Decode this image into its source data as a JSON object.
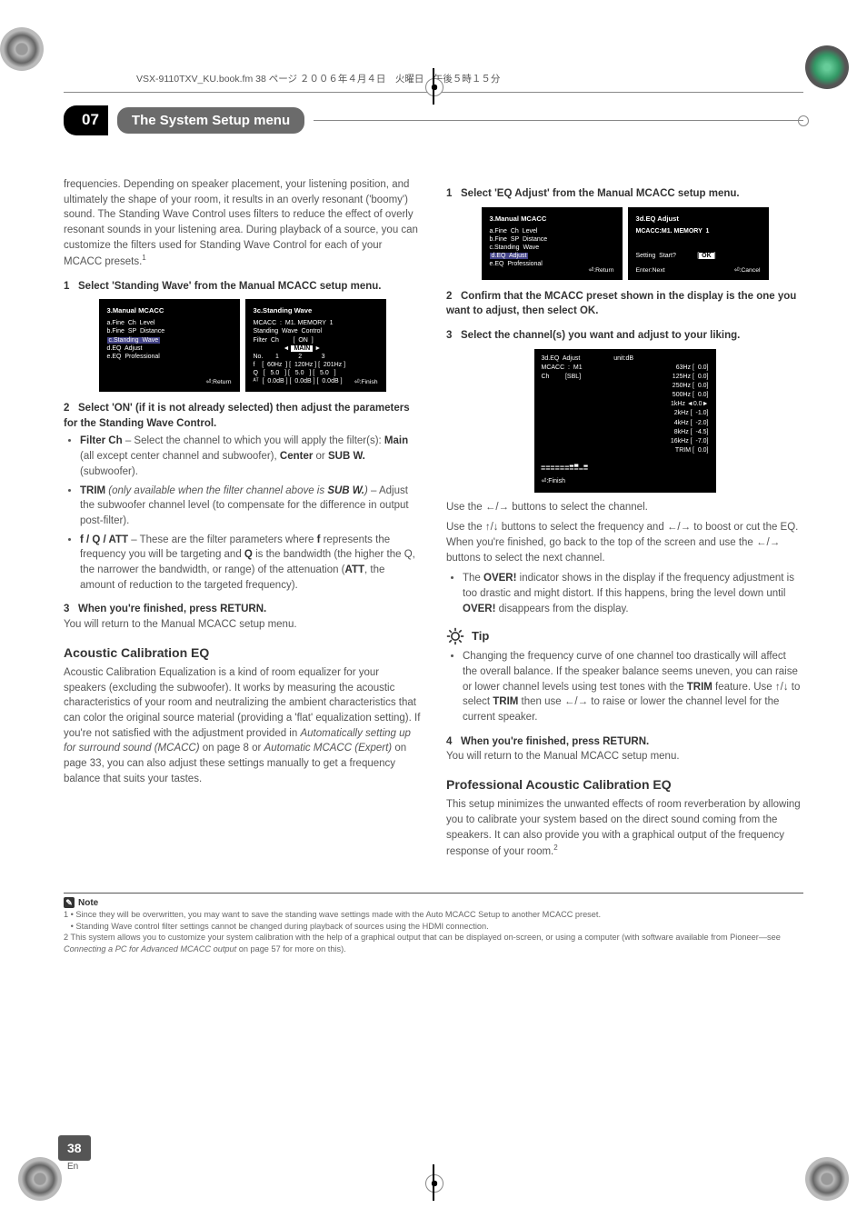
{
  "header_line": "VSX-9110TXV_KU.book.fm 38 ページ ２００６年４月４日　火曜日　午後５時１５分",
  "chapter": {
    "num": "07",
    "title": "The System Setup menu"
  },
  "col_left": {
    "intro": "frequencies. Depending on speaker placement, your listening position, and ultimately the shape of your room, it results in an overly resonant ('boomy') sound. The Standing Wave Control uses filters to reduce the effect of overly resonant sounds in your listening area. During playback of a source, you can customize the filters used for Standing Wave Control for each of your MCACC presets.",
    "sup1": "1",
    "step1": {
      "num": "1",
      "text": "Select 'Standing Wave' from the Manual MCACC setup menu."
    },
    "panelA": {
      "title": "3.Manual  MCACC",
      "items": [
        "a.Fine  Ch  Level",
        "b.Fine  SP  Distance",
        "c.Standing  Wave",
        "d.EQ  Adjust",
        "e.EQ  Professional"
      ],
      "hl_index": 2,
      "foot": "⏎:Return"
    },
    "panelB": {
      "title": "3c.Standing  Wave",
      "l1": "MCACC  :  M1. MEMORY  1",
      "l2": "Standing  Wave  Control",
      "l3_label": "Filter  Ch",
      "l3_on": "ON",
      "l3_main": "MAIN",
      "table": {
        "head": "No.       1           2           3",
        "r1": "f    [  60Hz  ] [  120Hz ] [  201Hz ]",
        "r2": "Q   [   5.0   ] [   5.0   ] [   5.0   ]",
        "r3": "ᴬᵀ  [  0.0dB ] [  0.0dB ] [  0.0dB ]"
      },
      "foot": "⏎:Finish"
    },
    "step2": {
      "num": "2",
      "text": "Select 'ON' (if it is not already selected) then adjust the parameters for the Standing Wave Control."
    },
    "bullets": [
      {
        "lbl": "Filter Ch",
        "txt": " – Select the channel to which you will apply the filter(s): ",
        "b2": "Main",
        "txt2": " (all except center channel and subwoofer), ",
        "b3": "Center",
        "txt3": " or ",
        "b4": "SUB W.",
        "txt4": " (subwoofer)."
      },
      {
        "lbl": "TRIM",
        "it": " (only available when the filter channel above is ",
        "itb": "SUB W.",
        "it2": ")",
        "txt": " – Adjust the subwoofer channel level (to compensate for the difference in output post-filter)."
      },
      {
        "lbl": "f / Q / ATT",
        "txt": " – These are the filter parameters where ",
        "b2": "f",
        "txt2": " represents the frequency you will be targeting and ",
        "b3": "Q",
        "txt3": " is the bandwidth (the higher the Q, the narrower the bandwidth, or range) of the attenuation (",
        "b4": "ATT",
        "txt4": ", the amount of reduction to the targeted frequency)."
      }
    ],
    "step3": {
      "num": "3",
      "text": "When you're finished, press RETURN."
    },
    "step3_sub": "You will return to the Manual MCACC setup menu.",
    "h2": "Acoustic Calibration EQ",
    "acoustic_para_a": "Acoustic Calibration Equalization is a kind of room equalizer for your speakers (excluding the subwoofer). It works by measuring the acoustic characteristics of your room and neutralizing the ambient characteristics that can color the original source material (providing a 'flat' equalization setting). If you're not satisfied with the adjustment provided in ",
    "acoustic_it1": "Automatically setting up for surround sound (MCACC)",
    "acoustic_mid1": " on page 8 or ",
    "acoustic_it2": "Automatic MCACC (Expert)",
    "acoustic_mid2": " on page 33, you can also adjust these settings manually to get a frequency balance that suits your tastes."
  },
  "col_right": {
    "step1": {
      "num": "1",
      "text": "Select 'EQ Adjust' from the Manual MCACC setup menu."
    },
    "panelA": {
      "title": "3.Manual  MCACC",
      "items": [
        "a.Fine  Ch  Level",
        "b.Fine  SP  Distance",
        "c.Standing  Wave",
        "d.EQ  Adjust",
        "e.EQ  Professional"
      ],
      "hl_index": 3,
      "foot": "⏎:Return"
    },
    "panelB": {
      "title": "3d.EQ  Adjust",
      "l1": "MCACC:M1. MEMORY  1",
      "l2": "Setting  Start?",
      "ok": "OK",
      "foot_l": "Enter:Next",
      "foot": "⏎:Cancel"
    },
    "step2": {
      "num": "2",
      "text": "Confirm that the MCACC preset shown in the display is the one you want to adjust, then select OK."
    },
    "step3": {
      "num": "3",
      "text": "Select the channel(s) you want and adjust to your liking."
    },
    "eq_panel": {
      "title": "3d.EQ  Adjust                   unit:dB",
      "l_mcacc": "MCACC  :  M1",
      "l_ch": "Ch         [SBL]",
      "freqs": [
        "63Hz",
        "125Hz",
        "250Hz",
        "500Hz",
        "1kHz",
        "2kHz",
        "4kHz",
        "8kHz",
        "16kHz",
        "TRIM"
      ],
      "vals": [
        "0.0",
        "0.0",
        "0.0",
        "0.0",
        "0.0",
        "-1.0",
        "-2.0",
        "-4.5",
        "-7.0",
        "0.0"
      ],
      "hl_index": 4,
      "foot": "⏎:Finish"
    },
    "use1": "Use the ←/→ buttons to select the channel.",
    "use2": "Use the ↑/↓ buttons to select the frequency and ←/→ to boost or cut the EQ. When you're finished, go back to the top of the screen and use the ←/→ buttons to select the next channel.",
    "over_bullet_a": "The ",
    "over_bold": "OVER!",
    "over_bullet_b": " indicator shows in the display if the frequency adjustment is too drastic and might distort. If this happens, bring the level down until ",
    "over_bullet_c": " disappears from the display.",
    "tip_label": "Tip",
    "tip_text_a": "Changing the frequency curve of one channel too drastically will affect the overall balance. If the speaker balance seems uneven, you can raise or lower channel levels using test tones with the ",
    "tip_b1": "TRIM",
    "tip_text_b": " feature. Use ↑/↓ to select ",
    "tip_b2": "TRIM",
    "tip_text_c": " then use ←/→ to raise or lower the channel level for the current speaker.",
    "step4": {
      "num": "4",
      "text": "When you're finished, press RETURN."
    },
    "step4_sub": "You will return to the Manual MCACC setup menu.",
    "h2": "Professional Acoustic Calibration EQ",
    "prof_para": "This setup minimizes the unwanted effects of room reverberation by allowing you to calibrate your system based on the direct sound coming from the speakers. It can also provide you with a graphical output of the frequency response of your room.",
    "sup2": "2"
  },
  "notes": {
    "head": "Note",
    "n1a": "1  • Since they will be overwritten, you may want to save the standing wave settings made with the Auto MCACC Setup to another MCACC preset.",
    "n1b": "• Standing Wave control filter settings cannot be changed during playback of sources using the HDMI connection.",
    "n2a": "2 This system allows you to customize your system calibration with the help of a graphical output that can be displayed on-screen, or using a computer (with software available from Pioneer—see ",
    "n2it": "Connecting a PC for Advanced MCACC output",
    "n2b": " on page 57 for more on this)."
  },
  "page_num": "38",
  "page_lang": "En"
}
